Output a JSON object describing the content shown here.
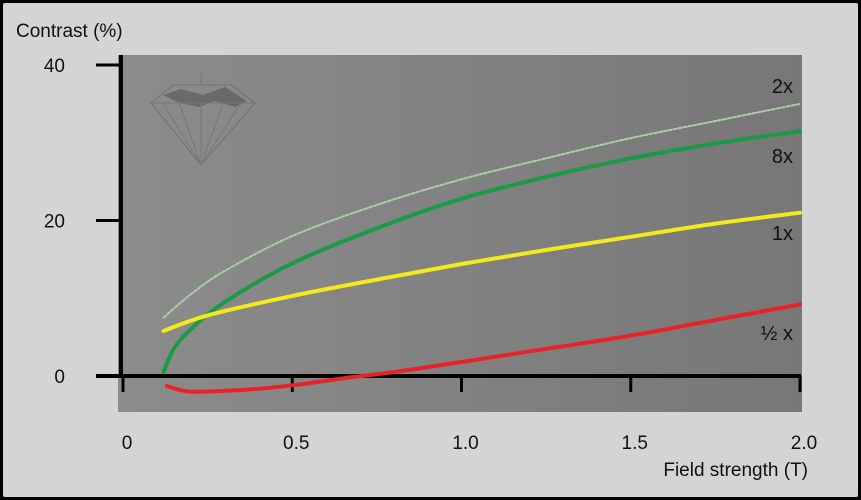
{
  "chart_data": {
    "type": "line",
    "title": "",
    "ylabel": "Contrast (%)",
    "xlabel": "Field strength (T)",
    "xlim": [
      0,
      2.0
    ],
    "ylim": [
      0,
      40
    ],
    "x_ticks": [
      "0",
      "0.5",
      "1.0",
      "1.5",
      "2.0"
    ],
    "y_ticks": [
      "0",
      "20",
      "40"
    ],
    "x_tick_values": [
      0,
      0.5,
      1.0,
      1.5,
      2.0
    ],
    "y_tick_values": [
      0,
      20,
      40
    ],
    "grid": false,
    "legend": "inline labels at right end of curves",
    "series": [
      {
        "name": "2x",
        "color": "#a9cfa5",
        "style": "dashed-light",
        "x": [
          0.12,
          0.2,
          0.3,
          0.5,
          0.75,
          1.0,
          1.25,
          1.5,
          1.75,
          2.0
        ],
        "y": [
          7.5,
          10.5,
          13.5,
          18.0,
          22.0,
          25.3,
          28.0,
          30.6,
          32.8,
          35.0
        ]
      },
      {
        "name": "8x",
        "color": "#1a9a46",
        "style": "solid",
        "x": [
          0.12,
          0.15,
          0.2,
          0.3,
          0.5,
          0.75,
          1.0,
          1.25,
          1.5,
          1.75,
          2.0
        ],
        "y": [
          0.5,
          3.5,
          6.0,
          9.5,
          14.5,
          19.0,
          22.8,
          25.6,
          28.0,
          29.9,
          31.5
        ]
      },
      {
        "name": "1x",
        "color": "#f2ea1a",
        "style": "solid",
        "x": [
          0.12,
          0.25,
          0.5,
          0.75,
          1.0,
          1.25,
          1.5,
          1.75,
          2.0
        ],
        "y": [
          5.8,
          7.8,
          10.3,
          12.4,
          14.4,
          16.2,
          17.9,
          19.6,
          21.0
        ]
      },
      {
        "name": "½ x",
        "color": "#e8222b",
        "style": "solid",
        "x": [
          0.13,
          0.2,
          0.35,
          0.5,
          0.65,
          0.8,
          1.0,
          1.25,
          1.5,
          1.75,
          2.0
        ],
        "y": [
          -1.3,
          -2.0,
          -1.8,
          -1.2,
          -0.3,
          0.5,
          1.8,
          3.5,
          5.2,
          7.2,
          9.2
        ]
      }
    ]
  }
}
